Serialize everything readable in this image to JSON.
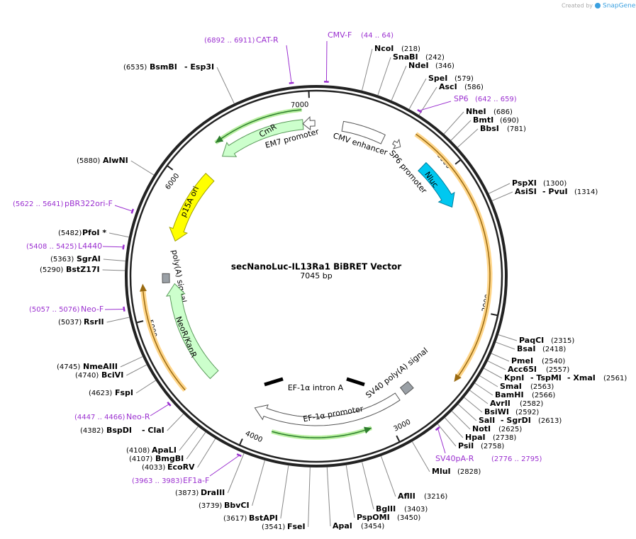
{
  "header": {
    "credit": "Created by",
    "brand": "SnapGene"
  },
  "plasmid": {
    "name": "secNanoLuc-IL13Ra1 BiBRET Vector",
    "size": "7045 bp"
  },
  "ruler": [
    "1000",
    "2000",
    "3000",
    "4000",
    "5000",
    "6000",
    "7000"
  ],
  "features": [
    {
      "label": "CmR"
    },
    {
      "label": "EM7 promoter"
    },
    {
      "label": "CMV enhancer"
    },
    {
      "label": "SP6 promoter"
    },
    {
      "label": "Nluc"
    },
    {
      "label": "p15A ori"
    },
    {
      "label": "poly(A) signal"
    },
    {
      "label": "NeoR/KanR"
    },
    {
      "label": "EF-1α intron A"
    },
    {
      "label": "SV40 poly(A) signal"
    },
    {
      "label": "EF-1α promoter"
    }
  ],
  "sites": [
    {
      "names": [
        "NcoI"
      ],
      "position": "(218)"
    },
    {
      "names": [
        "SnaBI"
      ],
      "position": "(242)"
    },
    {
      "names": [
        "NdeI"
      ],
      "position": "(346)"
    },
    {
      "names": [
        "SpeI"
      ],
      "position": "(579)"
    },
    {
      "names": [
        "AscI"
      ],
      "position": "(586)"
    },
    {
      "names": [
        "NheI"
      ],
      "position": "(686)"
    },
    {
      "names": [
        "BmtI"
      ],
      "position": "(690)"
    },
    {
      "names": [
        "BbsI"
      ],
      "position": "(781)"
    },
    {
      "names": [
        "PspXI"
      ],
      "position": "(1300)"
    },
    {
      "names": [
        "AsiSI",
        "- PvuI"
      ],
      "position": "(1314)"
    },
    {
      "names": [
        "PaqCI"
      ],
      "position": "(2315)"
    },
    {
      "names": [
        "BsaI"
      ],
      "position": "(2418)"
    },
    {
      "names": [
        "PmeI"
      ],
      "position": "(2540)"
    },
    {
      "names": [
        "Acc65I"
      ],
      "position": "(2557)"
    },
    {
      "names": [
        "KpnI",
        "- TspMI",
        "- XmaI"
      ],
      "position": "(2561)"
    },
    {
      "names": [
        "SmaI"
      ],
      "position": "(2563)"
    },
    {
      "names": [
        "BamHI"
      ],
      "position": "(2566)"
    },
    {
      "names": [
        "AvrII"
      ],
      "position": "(2582)"
    },
    {
      "names": [
        "BsiWI"
      ],
      "position": "(2592)"
    },
    {
      "names": [
        "SalI",
        "- SgrDI"
      ],
      "position": "(2613)"
    },
    {
      "names": [
        "NotI"
      ],
      "position": "(2625)"
    },
    {
      "names": [
        "HpaI"
      ],
      "position": "(2738)"
    },
    {
      "names": [
        "PsiI"
      ],
      "position": "(2758)"
    },
    {
      "names": [
        "MluI"
      ],
      "position": "(2828)"
    },
    {
      "names": [
        "AflII"
      ],
      "position": "(3216)"
    },
    {
      "names": [
        "BglII"
      ],
      "position": "(3403)"
    },
    {
      "names": [
        "PspOMI"
      ],
      "position": "(3450)"
    },
    {
      "names": [
        "ApaI"
      ],
      "position": "(3454)"
    },
    {
      "names": [
        "BsmBI",
        "- Esp3I"
      ],
      "position": "(6535)"
    },
    {
      "names": [
        "AlwNI"
      ],
      "position": "(5880)"
    },
    {
      "names": [
        "PfoI *"
      ],
      "position": "(5482)"
    },
    {
      "names": [
        "SgrAI"
      ],
      "position": "(5363)"
    },
    {
      "names": [
        "BstZ17I"
      ],
      "position": "(5290)"
    },
    {
      "names": [
        "RsrII"
      ],
      "position": "(5037)"
    },
    {
      "names": [
        "NmeAIII"
      ],
      "position": "(4745)"
    },
    {
      "names": [
        "BciVI"
      ],
      "position": "(4740)"
    },
    {
      "names": [
        "FspI"
      ],
      "position": "(4623)"
    },
    {
      "names": [
        "BspDI",
        "- ClaI"
      ],
      "position": "(4382)"
    },
    {
      "names": [
        "ApaLI"
      ],
      "position": "(4108)"
    },
    {
      "names": [
        "BmgBI"
      ],
      "position": "(4107)"
    },
    {
      "names": [
        "EcoRV"
      ],
      "position": "(4033)"
    },
    {
      "names": [
        "DraIII"
      ],
      "position": "(3873)"
    },
    {
      "names": [
        "BbvCI"
      ],
      "position": "(3739)"
    },
    {
      "names": [
        "BstAPI"
      ],
      "position": "(3617)"
    },
    {
      "names": [
        "FseI"
      ],
      "position": "(3541)"
    }
  ],
  "primers": [
    {
      "name": "CAT-R",
      "range": "(6892 .. 6911)"
    },
    {
      "name": "CMV-F",
      "range": "(44 .. 64)"
    },
    {
      "name": "SP6",
      "range": "(642 .. 659)"
    },
    {
      "name": "pBR322ori-F",
      "range": "(5622 .. 5641)"
    },
    {
      "name": "L4440",
      "range": "(5408 .. 5425)"
    },
    {
      "name": "Neo-F",
      "range": "(5057 .. 5076)"
    },
    {
      "name": "Neo-R",
      "range": "(4447 .. 4466)"
    },
    {
      "name": "EF1a-F",
      "range": "(3963 .. 3983)"
    },
    {
      "name": "SV40pA-R",
      "range": "(2776 .. 2795)"
    }
  ]
}
